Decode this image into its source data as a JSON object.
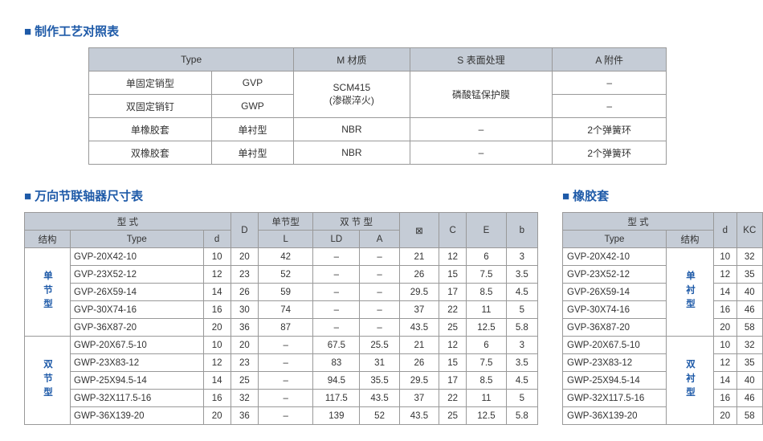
{
  "titles": {
    "top": "制作工艺对照表",
    "dim": "万向节联轴器尺寸表",
    "rubber": "橡胶套"
  },
  "top": {
    "headers": {
      "type": "Type",
      "m": "M 材质",
      "s": "S 表面处理",
      "a": "A 附件"
    },
    "r1": {
      "c1": "单固定销型",
      "c2": "GVP",
      "m": "SCM415\n(渗碳淬火)",
      "s": "磷酸锰保护膜",
      "a": "–"
    },
    "r2": {
      "c1": "双固定销钉",
      "c2": "GWP",
      "a": "–"
    },
    "r3": {
      "c1": "单橡胶套",
      "c2": "单衬型",
      "m": "NBR",
      "s": "–",
      "a": "2个弹簧环"
    },
    "r4": {
      "c1": "双橡胶套",
      "c2": "单衬型",
      "m": "NBR",
      "s": "–",
      "a": "2个弹簧环"
    }
  },
  "dim": {
    "headers": {
      "struct": "结构",
      "xingshi": "型   式",
      "type": "Type",
      "d": "d",
      "D": "D",
      "single": "单节型",
      "double": "双 节 型",
      "L": "L",
      "LD": "LD",
      "A": "A",
      "sq": "⊠",
      "C": "C",
      "E": "E",
      "b": "b"
    },
    "group1_label": "单节型",
    "group2_label": "双节型",
    "rows1": [
      {
        "type": "GVP-20X42-10",
        "d": "10",
        "D": "20",
        "L": "42",
        "LD": "–",
        "A": "–",
        "sq": "21",
        "C": "12",
        "E": "6",
        "b": "3"
      },
      {
        "type": "GVP-23X52-12",
        "d": "12",
        "D": "23",
        "L": "52",
        "LD": "–",
        "A": "–",
        "sq": "26",
        "C": "15",
        "E": "7.5",
        "b": "3.5"
      },
      {
        "type": "GVP-26X59-14",
        "d": "14",
        "D": "26",
        "L": "59",
        "LD": "–",
        "A": "–",
        "sq": "29.5",
        "C": "17",
        "E": "8.5",
        "b": "4.5"
      },
      {
        "type": "GVP-30X74-16",
        "d": "16",
        "D": "30",
        "L": "74",
        "LD": "–",
        "A": "–",
        "sq": "37",
        "C": "22",
        "E": "11",
        "b": "5"
      },
      {
        "type": "GVP-36X87-20",
        "d": "20",
        "D": "36",
        "L": "87",
        "LD": "–",
        "A": "–",
        "sq": "43.5",
        "C": "25",
        "E": "12.5",
        "b": "5.8"
      }
    ],
    "rows2": [
      {
        "type": "GWP-20X67.5-10",
        "d": "10",
        "D": "20",
        "L": "–",
        "LD": "67.5",
        "A": "25.5",
        "sq": "21",
        "C": "12",
        "E": "6",
        "b": "3"
      },
      {
        "type": "GWP-23X83-12",
        "d": "12",
        "D": "23",
        "L": "–",
        "LD": "83",
        "A": "31",
        "sq": "26",
        "C": "15",
        "E": "7.5",
        "b": "3.5"
      },
      {
        "type": "GWP-25X94.5-14",
        "d": "14",
        "D": "25",
        "L": "–",
        "LD": "94.5",
        "A": "35.5",
        "sq": "29.5",
        "C": "17",
        "E": "8.5",
        "b": "4.5"
      },
      {
        "type": "GWP-32X117.5-16",
        "d": "16",
        "D": "32",
        "L": "–",
        "LD": "117.5",
        "A": "43.5",
        "sq": "37",
        "C": "22",
        "E": "11",
        "b": "5"
      },
      {
        "type": "GWP-36X139-20",
        "d": "20",
        "D": "36",
        "L": "–",
        "LD": "139",
        "A": "52",
        "sq": "43.5",
        "C": "25",
        "E": "12.5",
        "b": "5.8"
      }
    ]
  },
  "rubber": {
    "headers": {
      "xingshi": "型 式",
      "type": "Type",
      "struct": "结构",
      "d": "d",
      "KC": "KC"
    },
    "group1_label": "单衬型",
    "group2_label": "双衬型",
    "rows1": [
      {
        "type": "GVP-20X42-10",
        "d": "10",
        "kc": "32"
      },
      {
        "type": "GVP-23X52-12",
        "d": "12",
        "kc": "35"
      },
      {
        "type": "GVP-26X59-14",
        "d": "14",
        "kc": "40"
      },
      {
        "type": "GVP-30X74-16",
        "d": "16",
        "kc": "46"
      },
      {
        "type": "GVP-36X87-20",
        "d": "20",
        "kc": "58"
      }
    ],
    "rows2": [
      {
        "type": "GWP-20X67.5-10",
        "d": "10",
        "kc": "32"
      },
      {
        "type": "GWP-23X83-12",
        "d": "12",
        "kc": "35"
      },
      {
        "type": "GWP-25X94.5-14",
        "d": "14",
        "kc": "40"
      },
      {
        "type": "GWP-32X117.5-16",
        "d": "16",
        "kc": "46"
      },
      {
        "type": "GWP-36X139-20",
        "d": "20",
        "kc": "58"
      }
    ]
  }
}
